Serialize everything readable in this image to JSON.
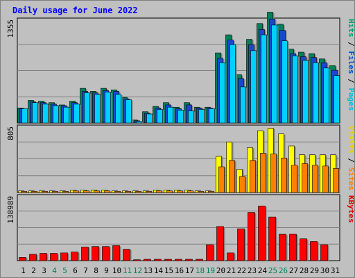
{
  "chart_data": {
    "type": "bar",
    "title": "Daily usage for June 2022",
    "categories": [
      "1",
      "2",
      "3",
      "4",
      "5",
      "6",
      "7",
      "8",
      "9",
      "10",
      "11",
      "12",
      "13",
      "14",
      "15",
      "16",
      "17",
      "18",
      "19",
      "20",
      "21",
      "22",
      "23",
      "24",
      "25",
      "26",
      "27",
      "28",
      "29",
      "30",
      "31"
    ],
    "weekend_days": [
      "4",
      "5",
      "11",
      "12",
      "18",
      "19",
      "25",
      "26"
    ],
    "panels": [
      {
        "id": "top",
        "ymax": 1355,
        "ymax_label": "1355",
        "labels": [
          {
            "text": "Pages",
            "color": "#00c0e0"
          },
          {
            "text": "Files",
            "color": "#0050d0"
          },
          {
            "text": "Hits",
            "color": "#00a070"
          }
        ],
        "series": [
          {
            "name": "Hits",
            "color": "#00805a",
            "values": [
              200,
              300,
              290,
              270,
              240,
              290,
              460,
              420,
              460,
              440,
              340,
              40,
              150,
              220,
              270,
              210,
              270,
              210,
              210,
              930,
              1170,
              640,
              1110,
              1320,
              1470,
              1310,
              980,
              940,
              920,
              850,
              760
            ]
          },
          {
            "name": "Files",
            "color": "#1848d0",
            "values": [
              190,
              280,
              270,
              250,
              230,
              270,
              420,
              400,
              430,
              420,
              320,
              30,
              130,
              200,
              240,
              190,
              240,
              200,
              200,
              860,
              1100,
              590,
              1040,
              1240,
              1380,
              1230,
              920,
              880,
              870,
              800,
              700
            ]
          },
          {
            "name": "Pages",
            "color": "#00d0ff",
            "values": [
              190,
              270,
              250,
              230,
              210,
              250,
              400,
              380,
              410,
              380,
              310,
              20,
              120,
              180,
              210,
              170,
              160,
              180,
              190,
              800,
              1040,
              480,
              960,
              1170,
              1300,
              1090,
              890,
              830,
              800,
              730,
              630
            ]
          }
        ]
      },
      {
        "id": "middle",
        "ymax": 805,
        "ymax_label": "805",
        "labels": [
          {
            "text": "Sites",
            "color": "#ff8000"
          },
          {
            "text": "Visits",
            "color": "#e8d000"
          }
        ],
        "series": [
          {
            "name": "Visits",
            "color": "#ffff00",
            "values": [
              20,
              20,
              20,
              20,
              20,
              30,
              30,
              30,
              30,
              20,
              20,
              20,
              20,
              30,
              30,
              30,
              30,
              20,
              20,
              450,
              630,
              290,
              560,
              770,
              800,
              730,
              580,
              470,
              470,
              470,
              470
            ]
          },
          {
            "name": "Sites",
            "color": "#ff8000",
            "values": [
              15,
              15,
              15,
              15,
              15,
              20,
              20,
              20,
              20,
              15,
              15,
              15,
              15,
              20,
              20,
              20,
              20,
              15,
              15,
              320,
              400,
              200,
              400,
              490,
              480,
              430,
              340,
              360,
              340,
              330,
              300
            ]
          }
        ]
      },
      {
        "id": "bottom",
        "ymax": 138989,
        "ymax_label": "138989",
        "labels": [
          {
            "text": "KBytes",
            "color": "#e00000"
          }
        ],
        "series": [
          {
            "name": "KBytes",
            "color": "#ff0000",
            "values": [
              7000,
              14000,
              16000,
              16000,
              17000,
              19000,
              30000,
              31000,
              31000,
              33000,
              25000,
              2000,
              3000,
              3000,
              3000,
              3000,
              3000,
              3000,
              35000,
              75000,
              17000,
              70000,
              106000,
              120000,
              96000,
              58000,
              58000,
              48000,
              42000,
              35000,
              0
            ]
          }
        ]
      }
    ]
  }
}
